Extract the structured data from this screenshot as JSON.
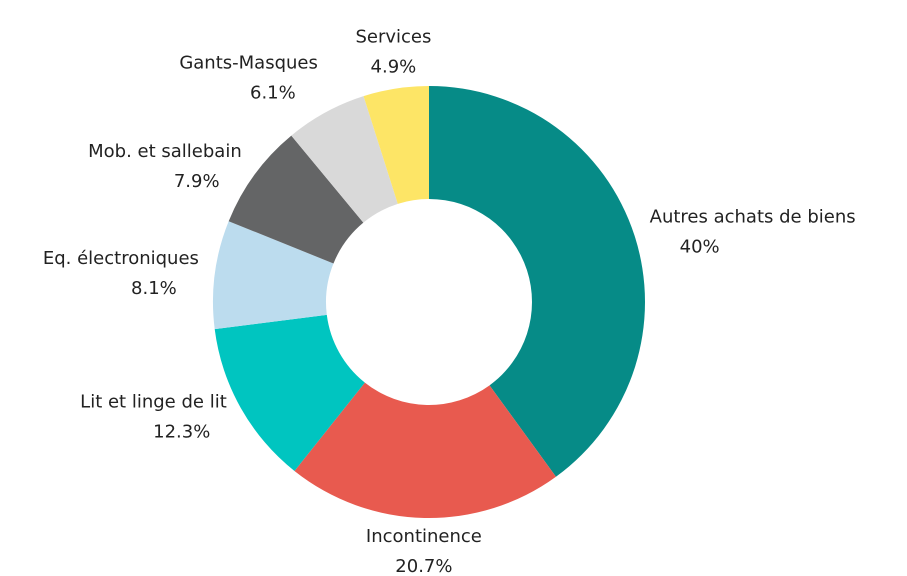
{
  "chart_data": {
    "type": "donut",
    "categories": [
      "Autres achats de biens",
      "Incontinence",
      "Lit et linge de lit",
      "Eq. électroniques",
      "Mob. et sallebain",
      "Gants-Masques",
      "Services"
    ],
    "values": [
      40,
      20.7,
      12.3,
      8.1,
      7.9,
      6.1,
      4.9
    ],
    "value_labels": [
      "40%",
      "20.7%",
      "12.3%",
      "8.1%",
      "7.9%",
      "6.1%",
      "4.9%"
    ],
    "colors": [
      "#068b87",
      "#e85a4f",
      "#00c5c0",
      "#bcdcee",
      "#646566",
      "#d9d9d9",
      "#fde566"
    ]
  }
}
